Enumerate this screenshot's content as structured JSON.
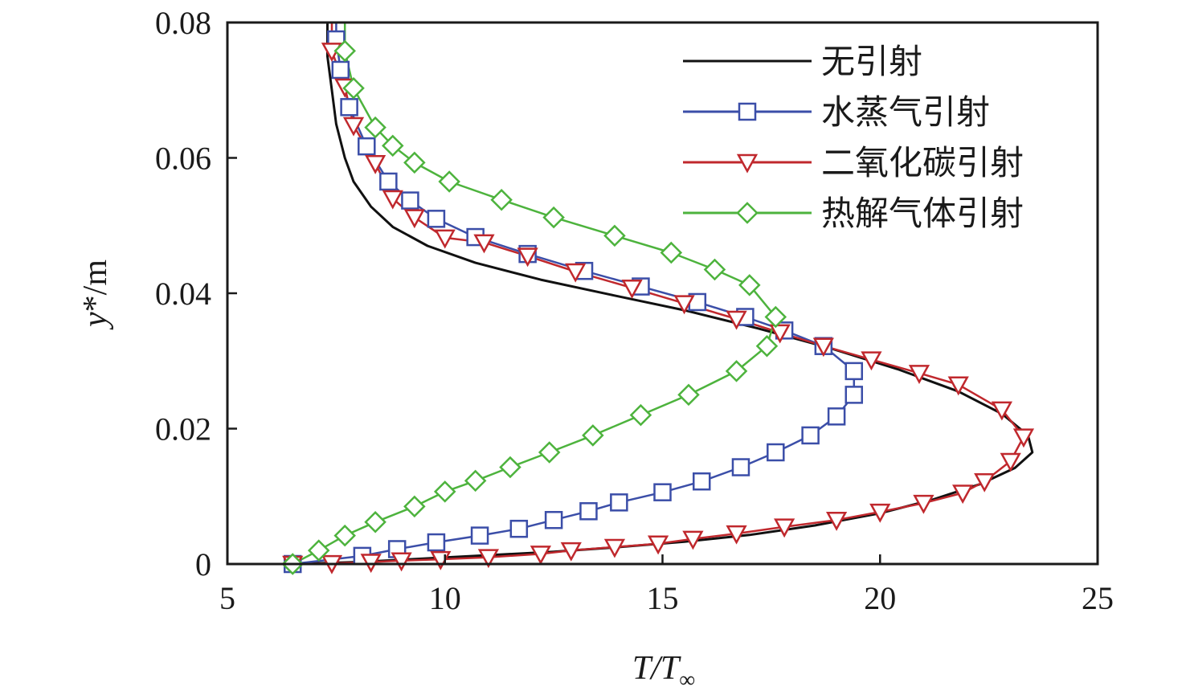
{
  "colors": {
    "无引射": "#111111",
    "水蒸气引射": "#3b4ea8",
    "二氧化碳引射": "#c0282d",
    "热解气体引射": "#4db33d",
    "axis": "#1a1a1a"
  },
  "chart_data": {
    "type": "line",
    "title": "",
    "xlabel_main": "T/T",
    "xlabel_sub": "∞",
    "ylabel_main": "y",
    "ylabel_rest": "*/m",
    "xlim": [
      5,
      25
    ],
    "ylim": [
      0,
      0.08
    ],
    "x_ticks": [
      5,
      10,
      15,
      20,
      25
    ],
    "x_tick_labels": [
      "5",
      "10",
      "15",
      "20",
      "25"
    ],
    "y_ticks": [
      0,
      0.02,
      0.04,
      0.06,
      0.08
    ],
    "y_tick_labels": [
      "0",
      "0.02",
      "0.04",
      "0.06",
      "0.08"
    ],
    "grid": false,
    "legend_position": "top-right",
    "series": [
      {
        "name": "无引射",
        "marker": "none",
        "color_key": "无引射",
        "points": [
          [
            6.5,
            0
          ],
          [
            8,
            0.0003
          ],
          [
            9.5,
            0.0008
          ],
          [
            11,
            0.0013
          ],
          [
            12.5,
            0.0018
          ],
          [
            14,
            0.0025
          ],
          [
            15.5,
            0.0033
          ],
          [
            17,
            0.0043
          ],
          [
            18.5,
            0.0057
          ],
          [
            20,
            0.0075
          ],
          [
            21.2,
            0.0095
          ],
          [
            22.3,
            0.0118
          ],
          [
            23.1,
            0.0142
          ],
          [
            23.5,
            0.0165
          ],
          [
            23.4,
            0.019
          ],
          [
            22.8,
            0.0222
          ],
          [
            21.8,
            0.0255
          ],
          [
            20.4,
            0.0288
          ],
          [
            18.8,
            0.032
          ],
          [
            17.2,
            0.0348
          ],
          [
            15.5,
            0.0375
          ],
          [
            13.8,
            0.0398
          ],
          [
            12.2,
            0.042
          ],
          [
            10.7,
            0.0445
          ],
          [
            9.6,
            0.047
          ],
          [
            8.8,
            0.0498
          ],
          [
            8.3,
            0.0528
          ],
          [
            7.9,
            0.0565
          ],
          [
            7.7,
            0.06
          ],
          [
            7.5,
            0.065
          ],
          [
            7.4,
            0.07
          ],
          [
            7.3,
            0.075
          ],
          [
            7.3,
            0.08
          ]
        ]
      },
      {
        "name": "水蒸气引射",
        "marker": "square",
        "color_key": "水蒸气引射",
        "points": [
          [
            6.5,
            0
          ],
          [
            8.1,
            0.0012
          ],
          [
            8.9,
            0.0022
          ],
          [
            9.8,
            0.0032
          ],
          [
            10.8,
            0.0042
          ],
          [
            11.7,
            0.0052
          ],
          [
            12.5,
            0.0065
          ],
          [
            13.3,
            0.0078
          ],
          [
            14.0,
            0.0091
          ],
          [
            15.0,
            0.0106
          ],
          [
            15.9,
            0.0122
          ],
          [
            16.8,
            0.0143
          ],
          [
            17.6,
            0.0165
          ],
          [
            18.4,
            0.019
          ],
          [
            19.0,
            0.0218
          ],
          [
            19.4,
            0.025
          ],
          [
            19.4,
            0.0285
          ],
          [
            18.7,
            0.0322
          ],
          [
            17.8,
            0.0345
          ],
          [
            16.9,
            0.0365
          ],
          [
            15.8,
            0.0387
          ],
          [
            14.5,
            0.041
          ],
          [
            13.2,
            0.0433
          ],
          [
            11.9,
            0.0458
          ],
          [
            10.7,
            0.0483
          ],
          [
            9.8,
            0.051
          ],
          [
            9.2,
            0.0537
          ],
          [
            8.7,
            0.0565
          ],
          [
            8.2,
            0.0617
          ],
          [
            7.8,
            0.0675
          ],
          [
            7.6,
            0.073
          ],
          [
            7.5,
            0.0775
          ],
          [
            7.5,
            0.08
          ]
        ]
      },
      {
        "name": "二氧化碳引射",
        "marker": "triangle-down",
        "color_key": "二氧化碳引射",
        "points": [
          [
            6.5,
            0
          ],
          [
            7.4,
            0.0001
          ],
          [
            8.3,
            0.0003
          ],
          [
            9.0,
            0.0005
          ],
          [
            9.9,
            0.0007
          ],
          [
            11.0,
            0.001
          ],
          [
            12.2,
            0.0015
          ],
          [
            12.9,
            0.002
          ],
          [
            13.9,
            0.0025
          ],
          [
            14.9,
            0.003
          ],
          [
            15.7,
            0.0037
          ],
          [
            16.7,
            0.0045
          ],
          [
            17.8,
            0.0055
          ],
          [
            19.0,
            0.0065
          ],
          [
            20.0,
            0.0077
          ],
          [
            21.0,
            0.009
          ],
          [
            21.9,
            0.0105
          ],
          [
            22.4,
            0.0122
          ],
          [
            23.0,
            0.0152
          ],
          [
            23.3,
            0.0188
          ],
          [
            22.8,
            0.0228
          ],
          [
            21.8,
            0.0265
          ],
          [
            20.9,
            0.0282
          ],
          [
            19.8,
            0.0302
          ],
          [
            18.7,
            0.0322
          ],
          [
            17.7,
            0.0342
          ],
          [
            16.7,
            0.0362
          ],
          [
            15.5,
            0.0385
          ],
          [
            14.3,
            0.0408
          ],
          [
            13.0,
            0.0432
          ],
          [
            11.9,
            0.0455
          ],
          [
            10.9,
            0.0475
          ],
          [
            10.0,
            0.0482
          ],
          [
            9.3,
            0.0512
          ],
          [
            8.8,
            0.054
          ],
          [
            8.4,
            0.0592
          ],
          [
            7.9,
            0.0648
          ],
          [
            7.7,
            0.0705
          ],
          [
            7.4,
            0.0758
          ],
          [
            7.4,
            0.08
          ]
        ]
      },
      {
        "name": "热解气体引射",
        "marker": "diamond",
        "color_key": "热解气体引射",
        "points": [
          [
            6.5,
            0
          ],
          [
            7.1,
            0.002
          ],
          [
            7.7,
            0.0042
          ],
          [
            8.4,
            0.0062
          ],
          [
            9.3,
            0.0085
          ],
          [
            10.0,
            0.0107
          ],
          [
            10.7,
            0.0123
          ],
          [
            11.5,
            0.0143
          ],
          [
            12.4,
            0.0165
          ],
          [
            13.4,
            0.019
          ],
          [
            14.5,
            0.022
          ],
          [
            15.6,
            0.025
          ],
          [
            16.7,
            0.0285
          ],
          [
            17.4,
            0.0322
          ],
          [
            17.6,
            0.0365
          ],
          [
            17.0,
            0.0412
          ],
          [
            16.2,
            0.0435
          ],
          [
            15.2,
            0.046
          ],
          [
            13.9,
            0.0485
          ],
          [
            12.5,
            0.0512
          ],
          [
            11.3,
            0.0538
          ],
          [
            10.1,
            0.0565
          ],
          [
            9.3,
            0.0593
          ],
          [
            8.8,
            0.0618
          ],
          [
            8.4,
            0.0645
          ],
          [
            7.9,
            0.0703
          ],
          [
            7.7,
            0.0758
          ],
          [
            7.7,
            0.08
          ]
        ]
      }
    ]
  }
}
